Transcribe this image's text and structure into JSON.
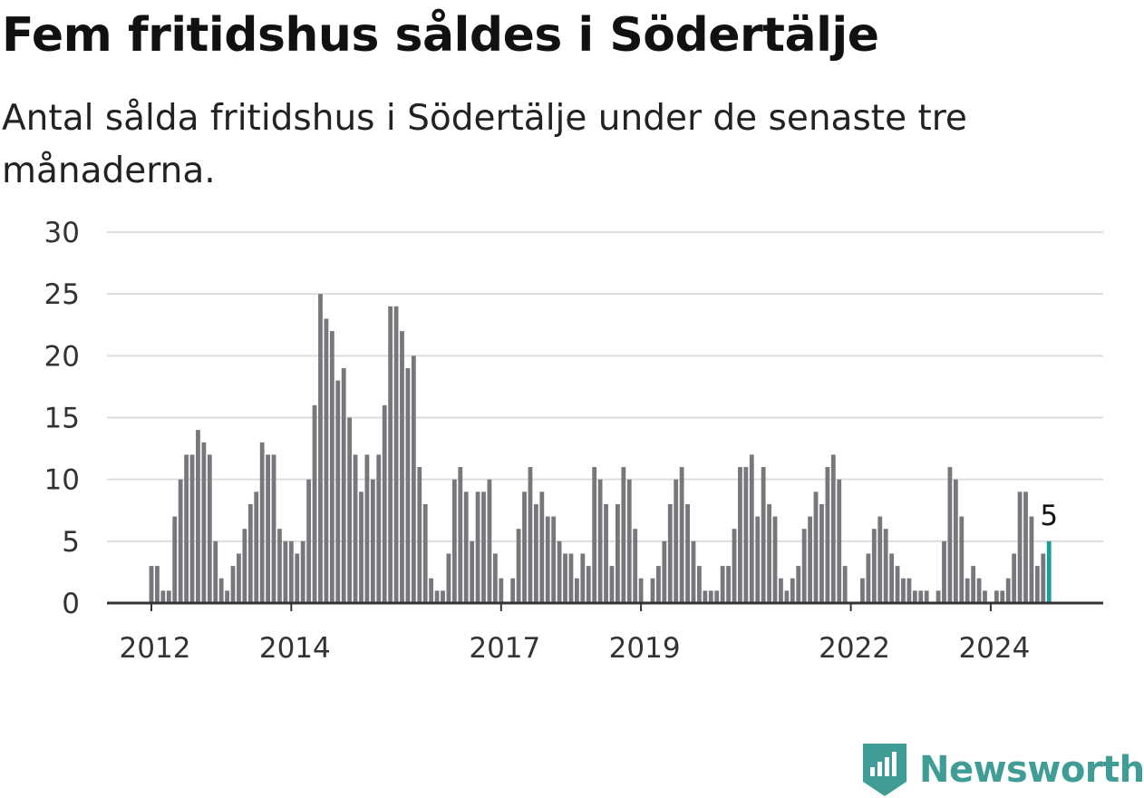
{
  "title": "Fem fritidshus såldes i Södertälje",
  "subtitle": "Antal sålda fritidshus i Södertälje under de senaste tre månaderna.",
  "brand": {
    "name": "Newsworthy",
    "color": "#3f9d96"
  },
  "colors": {
    "bar": "#78777c",
    "highlight": "#1a9e96",
    "grid": "#dddddd",
    "axis": "#333333"
  },
  "chart_data": {
    "type": "bar",
    "start": "2012-01",
    "frequency": "monthly",
    "ylim": [
      0,
      30
    ],
    "yticks": [
      0,
      5,
      10,
      15,
      20,
      25,
      30
    ],
    "xtick_labels": [
      "2012",
      "2014",
      "2017",
      "2019",
      "2022",
      "2024"
    ],
    "xtick_months": [
      "2012-01",
      "2014-01",
      "2017-01",
      "2019-01",
      "2022-01",
      "2024-01"
    ],
    "grid": true,
    "highlight_last": true,
    "last_label": "5",
    "values": [
      3,
      3,
      1,
      1,
      7,
      10,
      12,
      12,
      14,
      13,
      12,
      5,
      2,
      1,
      3,
      4,
      6,
      8,
      9,
      13,
      12,
      12,
      6,
      5,
      5,
      4,
      5,
      10,
      16,
      25,
      23,
      22,
      18,
      19,
      15,
      12,
      9,
      12,
      10,
      12,
      16,
      24,
      24,
      22,
      19,
      20,
      11,
      8,
      2,
      1,
      1,
      4,
      10,
      11,
      9,
      5,
      9,
      9,
      10,
      4,
      2,
      0,
      2,
      6,
      9,
      11,
      8,
      9,
      7,
      7,
      5,
      4,
      4,
      2,
      4,
      3,
      11,
      10,
      8,
      3,
      8,
      11,
      10,
      6,
      2,
      0,
      2,
      3,
      5,
      8,
      10,
      11,
      8,
      5,
      3,
      1,
      1,
      1,
      3,
      3,
      6,
      11,
      11,
      12,
      7,
      11,
      8,
      7,
      2,
      1,
      2,
      3,
      6,
      7,
      9,
      8,
      11,
      12,
      10,
      3,
      0,
      0,
      2,
      4,
      6,
      7,
      6,
      4,
      3,
      2,
      2,
      1,
      1,
      1,
      0,
      1,
      5,
      11,
      10,
      7,
      2,
      3,
      2,
      1,
      0,
      1,
      1,
      2,
      4,
      9,
      9,
      7,
      3,
      4,
      5
    ]
  }
}
